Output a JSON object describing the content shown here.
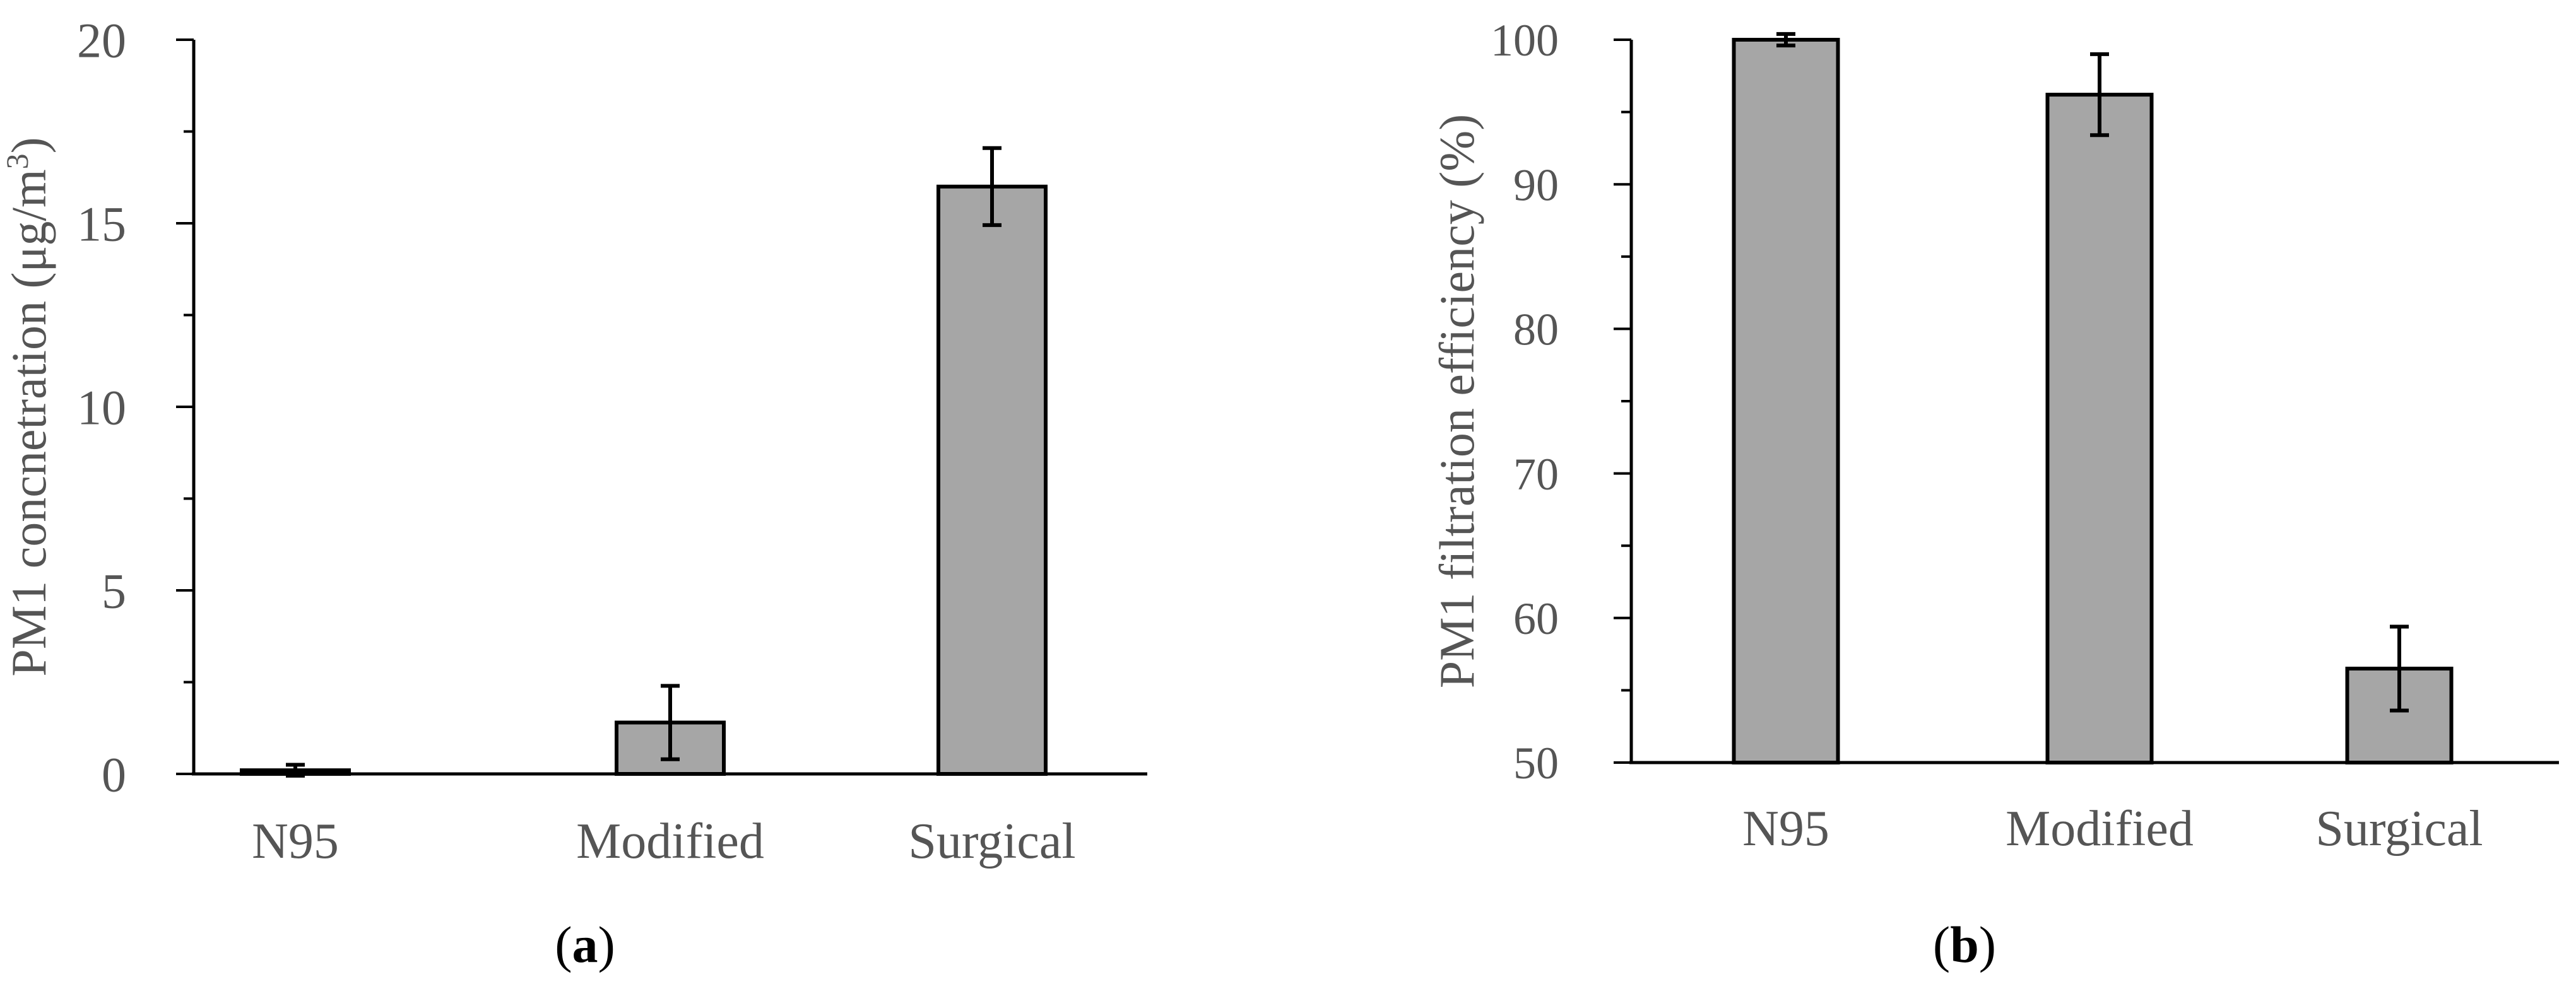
{
  "chart_data": [
    {
      "type": "bar",
      "panel_label": "a",
      "categories": [
        "N95",
        "Modified",
        "Surgical"
      ],
      "values": [
        0.1,
        1.4,
        16.0
      ],
      "errors": [
        0.15,
        1.0,
        1.05
      ],
      "ylim": [
        0,
        20
      ],
      "yticks": [
        0,
        5,
        10,
        15,
        20
      ],
      "ylabel": "PM1 concnetration (μg/m",
      "ylabel_superscript": "3",
      "ylabel_suffix": ")",
      "xlabel": "",
      "bar_color": "#a6a6a6",
      "grid": false
    },
    {
      "type": "bar",
      "panel_label": "b",
      "categories": [
        "N95",
        "Modified",
        "Surgical"
      ],
      "values": [
        100,
        96.2,
        56.5
      ],
      "errors": [
        0.4,
        2.8,
        2.9
      ],
      "ylim": [
        50,
        100
      ],
      "yticks": [
        50,
        60,
        70,
        80,
        90,
        100
      ],
      "ylabel": "PM1 filtration efficiency (%)",
      "xlabel": "",
      "bar_color": "#a6a6a6",
      "grid": false
    }
  ]
}
